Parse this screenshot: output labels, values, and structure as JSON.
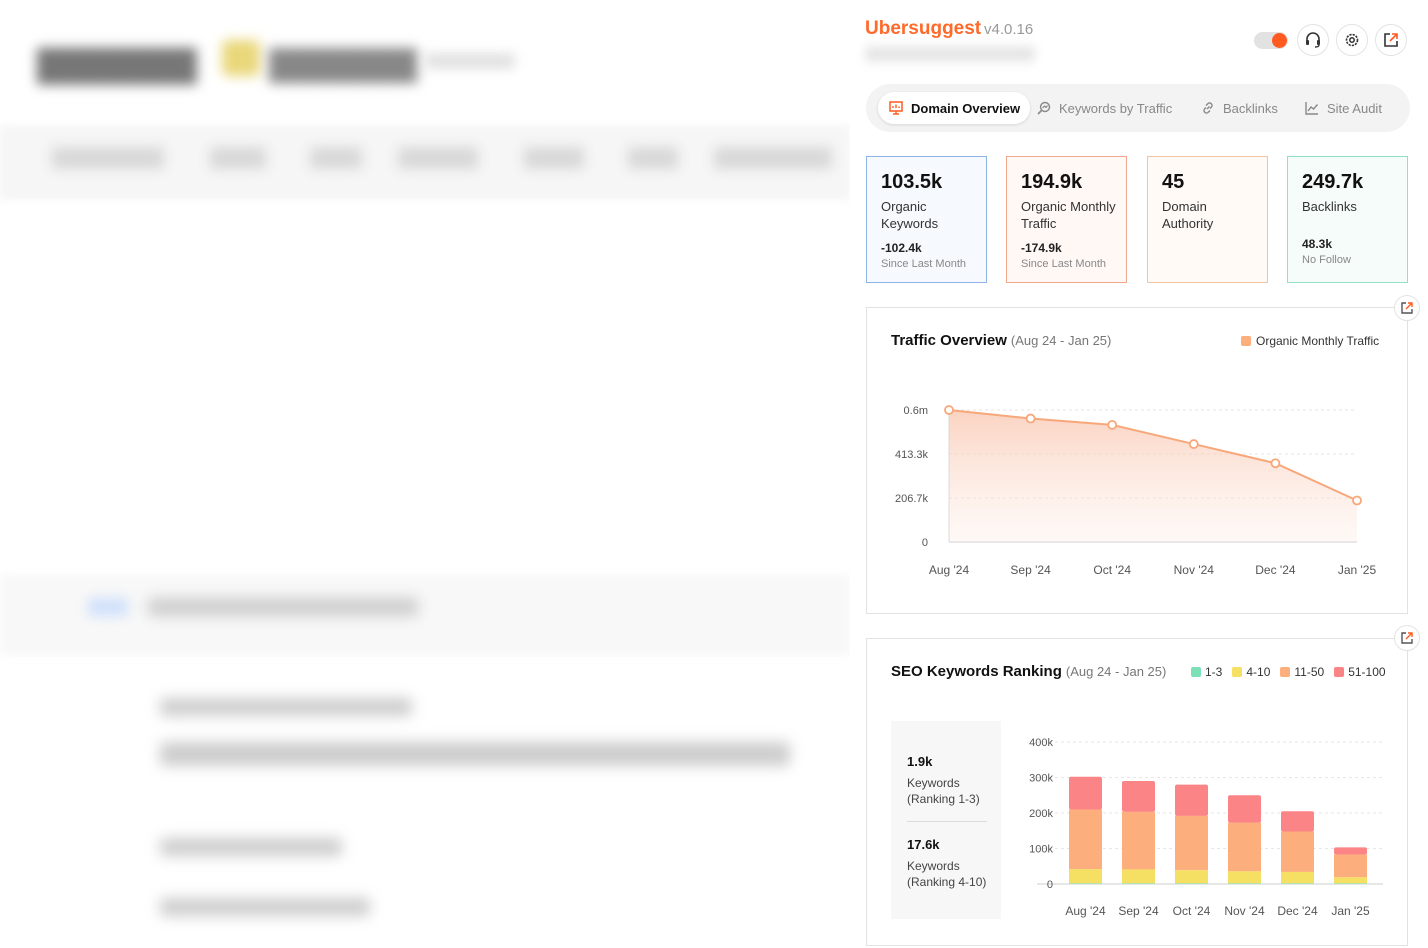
{
  "background": {
    "blurred": true
  },
  "extension": {
    "brand": "Ubersuggest",
    "version": "v4.0.16",
    "tabs": [
      {
        "label": "Domain Overview",
        "icon": "presentation-icon",
        "active": true
      },
      {
        "label": "Keywords by Traffic",
        "icon": "keyword-search-icon",
        "active": false
      },
      {
        "label": "Backlinks",
        "icon": "link-icon",
        "active": false
      },
      {
        "label": "Site Audit",
        "icon": "line-chart-icon",
        "active": false
      }
    ],
    "metrics": [
      {
        "value": "103.5k",
        "label": "Organic Keywords",
        "delta": "-102.4k",
        "delta_label": "Since Last Month",
        "color": "#8fb3e8"
      },
      {
        "value": "194.9k",
        "label": "Organic Monthly Traffic",
        "delta": "-174.9k",
        "delta_label": "Since Last Month",
        "color": "#f0a88e"
      },
      {
        "value": "45",
        "label": "Domain Authority",
        "delta": "",
        "delta_label": "",
        "color": "#f3c4a4"
      },
      {
        "value": "249.7k",
        "label": "Backlinks",
        "delta": "48.3k",
        "delta_label": "No Follow",
        "color": "#92dfc4"
      }
    ],
    "colors": {
      "accent": "#ff6a2a",
      "line": "#f7a77a",
      "range_1_3": "#7fe0b8",
      "range_4_10": "#f5e064",
      "range_11_50": "#fcae7c",
      "range_51_100": "#fb8487"
    }
  },
  "traffic": {
    "title": "Traffic Overview",
    "range": "(Aug 24 - Jan 25)",
    "legend": "Organic Monthly Traffic"
  },
  "seo": {
    "title": "SEO Keywords Ranking",
    "range": "(Aug 24 - Jan 25)",
    "legend": [
      "1-3",
      "4-10",
      "11-50",
      "51-100"
    ],
    "side": [
      {
        "value": "1.9k",
        "label_1": "Keywords",
        "label_2": "(Ranking 1-3)"
      },
      {
        "value": "17.6k",
        "label_1": "Keywords",
        "label_2": "(Ranking 4-10)"
      }
    ]
  },
  "chart_data": [
    {
      "type": "area",
      "title": "Traffic Overview",
      "subtitle": "(Aug 24 - Jan 25)",
      "categories": [
        "Aug '24",
        "Sep '24",
        "Oct '24",
        "Nov '24",
        "Dec '24",
        "Jan '25"
      ],
      "series": [
        {
          "name": "Organic Monthly Traffic",
          "values": [
            620000,
            580000,
            550000,
            460000,
            370000,
            195000
          ]
        }
      ],
      "yticks": [
        "0",
        "206.7k",
        "413.3k",
        "0.6m"
      ],
      "ytick_values": [
        0,
        206700,
        413300,
        620000
      ],
      "ylim": [
        0,
        620000
      ],
      "legend": "top-right",
      "grid": true
    },
    {
      "type": "bar",
      "stacked": true,
      "title": "SEO Keywords Ranking",
      "subtitle": "(Aug 24 - Jan 25)",
      "categories": [
        "Aug '24",
        "Sep '24",
        "Oct '24",
        "Nov '24",
        "Dec '24",
        "Jan '25"
      ],
      "series": [
        {
          "name": "1-3",
          "values": [
            2000,
            2000,
            2000,
            2000,
            2000,
            2000
          ]
        },
        {
          "name": "4-10",
          "values": [
            40000,
            39000,
            37000,
            34000,
            32000,
            17000
          ]
        },
        {
          "name": "11-50",
          "values": [
            168000,
            162000,
            153000,
            137000,
            114000,
            64000
          ]
        },
        {
          "name": "51-100",
          "values": [
            92000,
            87000,
            88000,
            77000,
            57000,
            20000
          ]
        }
      ],
      "yticks": [
        "0",
        "100k",
        "200k",
        "300k",
        "400k"
      ],
      "ytick_values": [
        0,
        100000,
        200000,
        300000,
        400000
      ],
      "ylim": [
        0,
        400000
      ],
      "legend": "top-right",
      "grid": true
    }
  ]
}
